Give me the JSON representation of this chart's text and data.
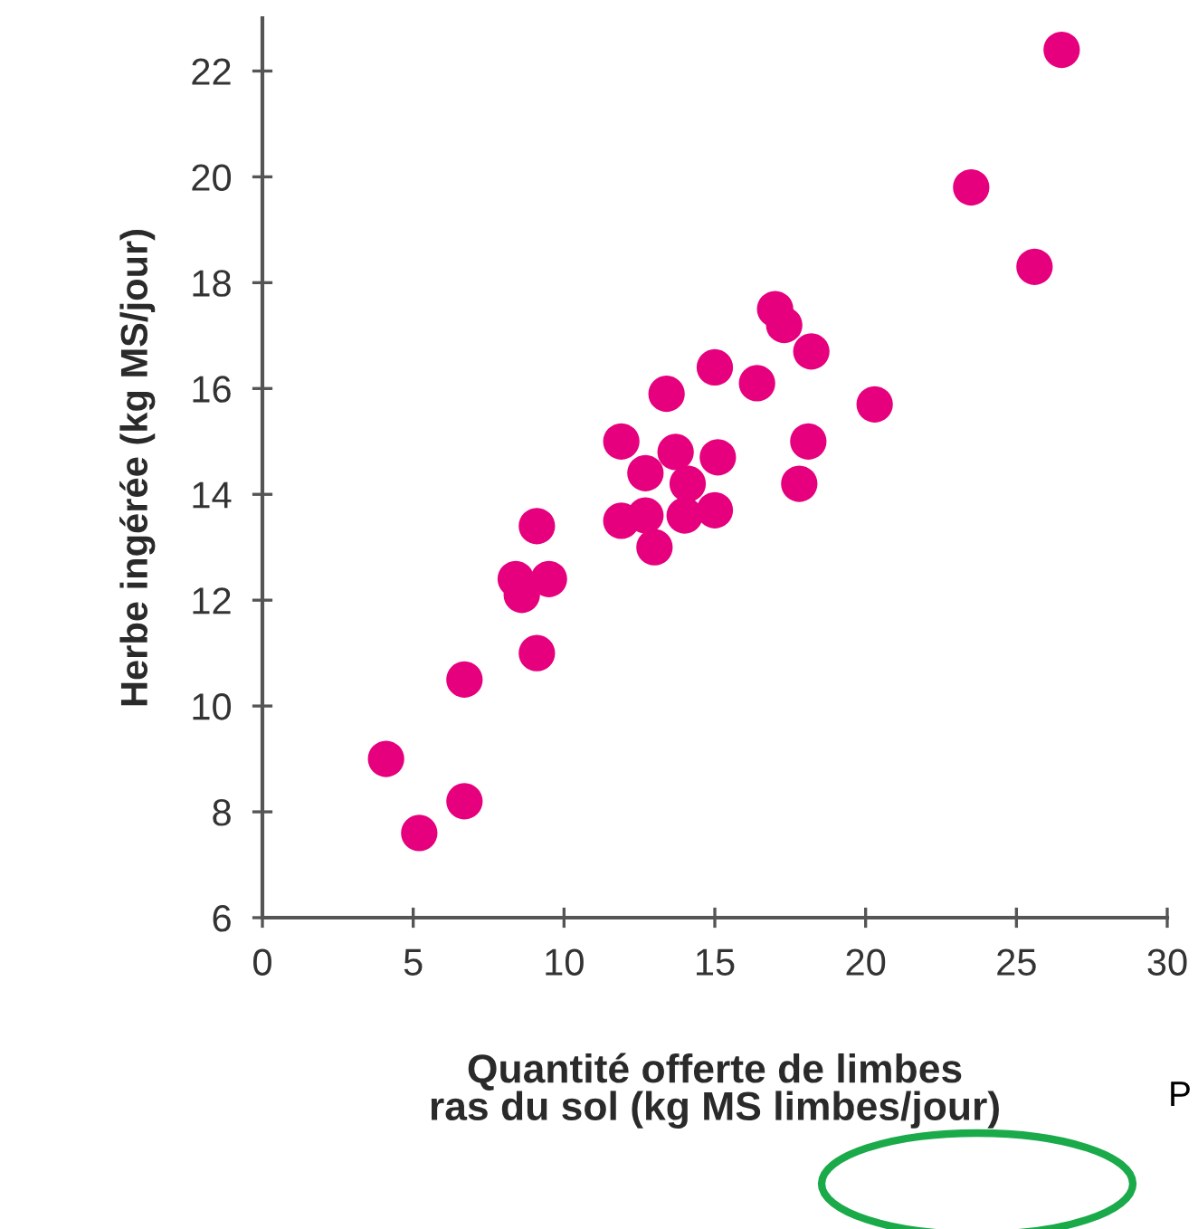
{
  "chart_data": {
    "type": "scatter",
    "xlabel": "Quantité offerte de limbes\nras du sol (kg MS limbes/jour)",
    "ylabel": "Herbe ingérée (kg MS/jour)",
    "x": [
      4.1,
      5.2,
      6.7,
      6.7,
      9.1,
      9.1,
      8.4,
      8.6,
      9.5,
      11.9,
      11.9,
      12.7,
      12.7,
      13.0,
      13.4,
      13.7,
      14.1,
      14.0,
      15.0,
      16.4,
      17.0,
      17.3,
      18.2,
      15.1,
      15.0,
      18.1,
      17.8,
      20.3,
      23.5,
      25.6,
      26.5
    ],
    "series": [
      {
        "color": "#e6007e",
        "values": [
          9.0,
          7.6,
          8.2,
          10.5,
          11.0,
          13.4,
          12.4,
          12.1,
          12.4,
          15.0,
          13.5,
          14.4,
          13.6,
          13.0,
          15.9,
          14.8,
          14.2,
          13.6,
          16.4,
          16.1,
          17.5,
          17.2,
          16.7,
          14.7,
          13.7,
          15.0,
          14.2,
          15.7,
          19.8,
          18.3,
          22.4
        ]
      }
    ],
    "marker": "circle",
    "xlim": [
      0,
      30
    ],
    "ylim": [
      6,
      23
    ],
    "xticks": [
      0,
      5,
      10,
      15,
      20,
      25,
      30
    ],
    "yticks": [
      6,
      8,
      10,
      12,
      14,
      16,
      18,
      20,
      22
    ],
    "grid": false,
    "legend": false,
    "annotations": [
      "P"
    ]
  }
}
